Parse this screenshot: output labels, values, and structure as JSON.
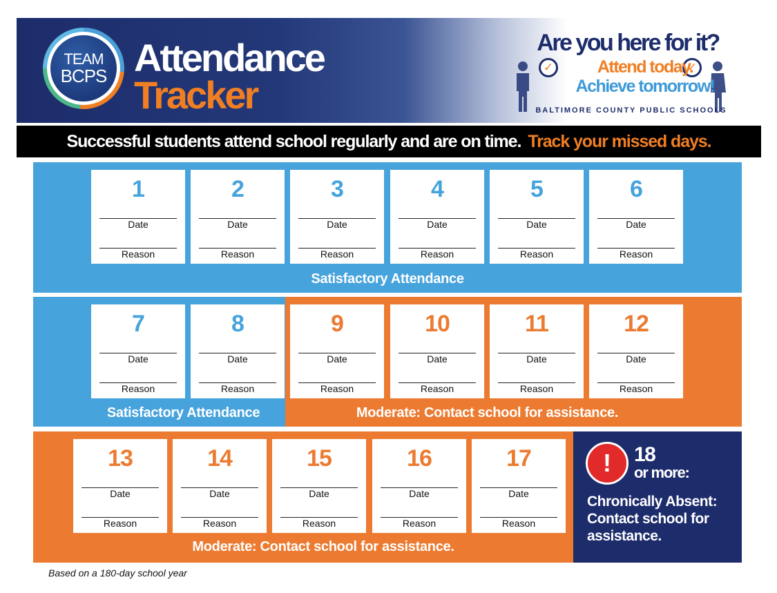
{
  "header": {
    "logo_line1": "TEAM",
    "logo_line2": "BCPS",
    "title_line1": "Attendance",
    "title_line2": "Tracker",
    "slogan_question": "Are you here for it?",
    "slogan_line1": "Attend today.",
    "slogan_line2": "Achieve tomorrow!",
    "organization": "BALTIMORE COUNTY PUBLIC SCHOOLS"
  },
  "banner": {
    "statement": "Successful students attend school regularly and are on time.",
    "call_to_action": "Track your missed days."
  },
  "card_labels": {
    "date": "Date",
    "reason": "Reason"
  },
  "days": [
    "1",
    "2",
    "3",
    "4",
    "5",
    "6",
    "7",
    "8",
    "9",
    "10",
    "11",
    "12",
    "13",
    "14",
    "15",
    "16",
    "17"
  ],
  "levels": {
    "satisfactory": "Satisfactory Attendance",
    "moderate": "Moderate: Contact school for assistance.",
    "chronic_number": "18",
    "chronic_more": "or more:",
    "chronic_text": "Chronically Absent: Contact school for assistance."
  },
  "colors": {
    "satisfactory": "#46a3dc",
    "moderate": "#ec7b31",
    "chronic": "#1d2c6b",
    "alert": "#e22a2a"
  },
  "footnote": "Based on a 180-day school year"
}
